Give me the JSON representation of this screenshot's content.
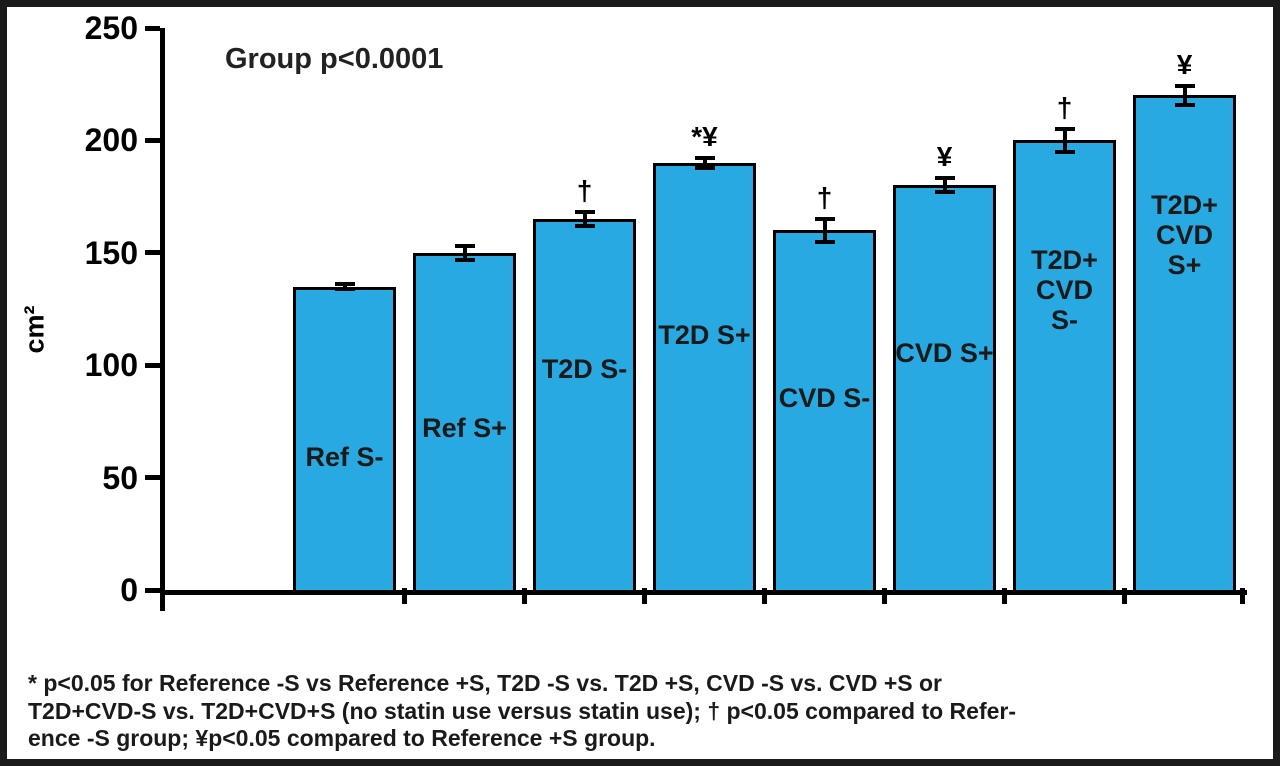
{
  "chart_data": {
    "type": "bar",
    "annotation": "Group p<0.0001",
    "ylabel": "cm²",
    "xlabel": "",
    "ylim": [
      0,
      250
    ],
    "yticks": [
      0,
      50,
      100,
      150,
      200,
      250
    ],
    "grid": false,
    "legend": "none",
    "bar_color": "#29A9E1",
    "axis_color": "#000000",
    "categories": [
      "Ref S-",
      "Ref S+",
      "T2D S-",
      "T2D S+",
      "CVD S-",
      "CVD S+",
      "T2D+CVD S-",
      "T2D+CVD S+"
    ],
    "values": [
      135,
      150,
      165,
      190,
      160,
      180,
      200,
      220
    ],
    "errors": [
      2,
      4,
      4,
      3,
      6,
      4,
      6,
      5
    ],
    "sig_symbols": [
      "",
      "",
      "†",
      "*¥",
      "†",
      "¥",
      "†",
      "¥"
    ],
    "bar_label_lines": [
      [
        "Ref S-"
      ],
      [
        "Ref S+"
      ],
      [
        "T2D S-"
      ],
      [
        "T2D S+"
      ],
      [
        "CVD S-"
      ],
      [
        "CVD S+"
      ],
      [
        "T2D+",
        "CVD",
        "S-"
      ],
      [
        "T2D+",
        "CVD",
        "S+"
      ]
    ],
    "footnote_lines": [
      "* p<0.05 for Reference -S vs Reference +S, T2D -S vs. T2D +S, CVD -S vs. CVD +S or",
      "T2D+CVD-S vs. T2D+CVD+S (no statin use versus statin use); † p<0.05 compared to Refer-",
      "ence -S group; ¥p<0.05 compared to Reference +S group."
    ],
    "footnote": "* p<0.05 for Reference -S vs Reference +S, T2D -S vs. T2D +S, CVD -S vs. CVD +S or T2D+CVD-S vs. T2D+CVD+S (no statin use versus statin use); † p<0.05 compared to Reference -S group; ¥p<0.05 compared to Reference +S group."
  }
}
